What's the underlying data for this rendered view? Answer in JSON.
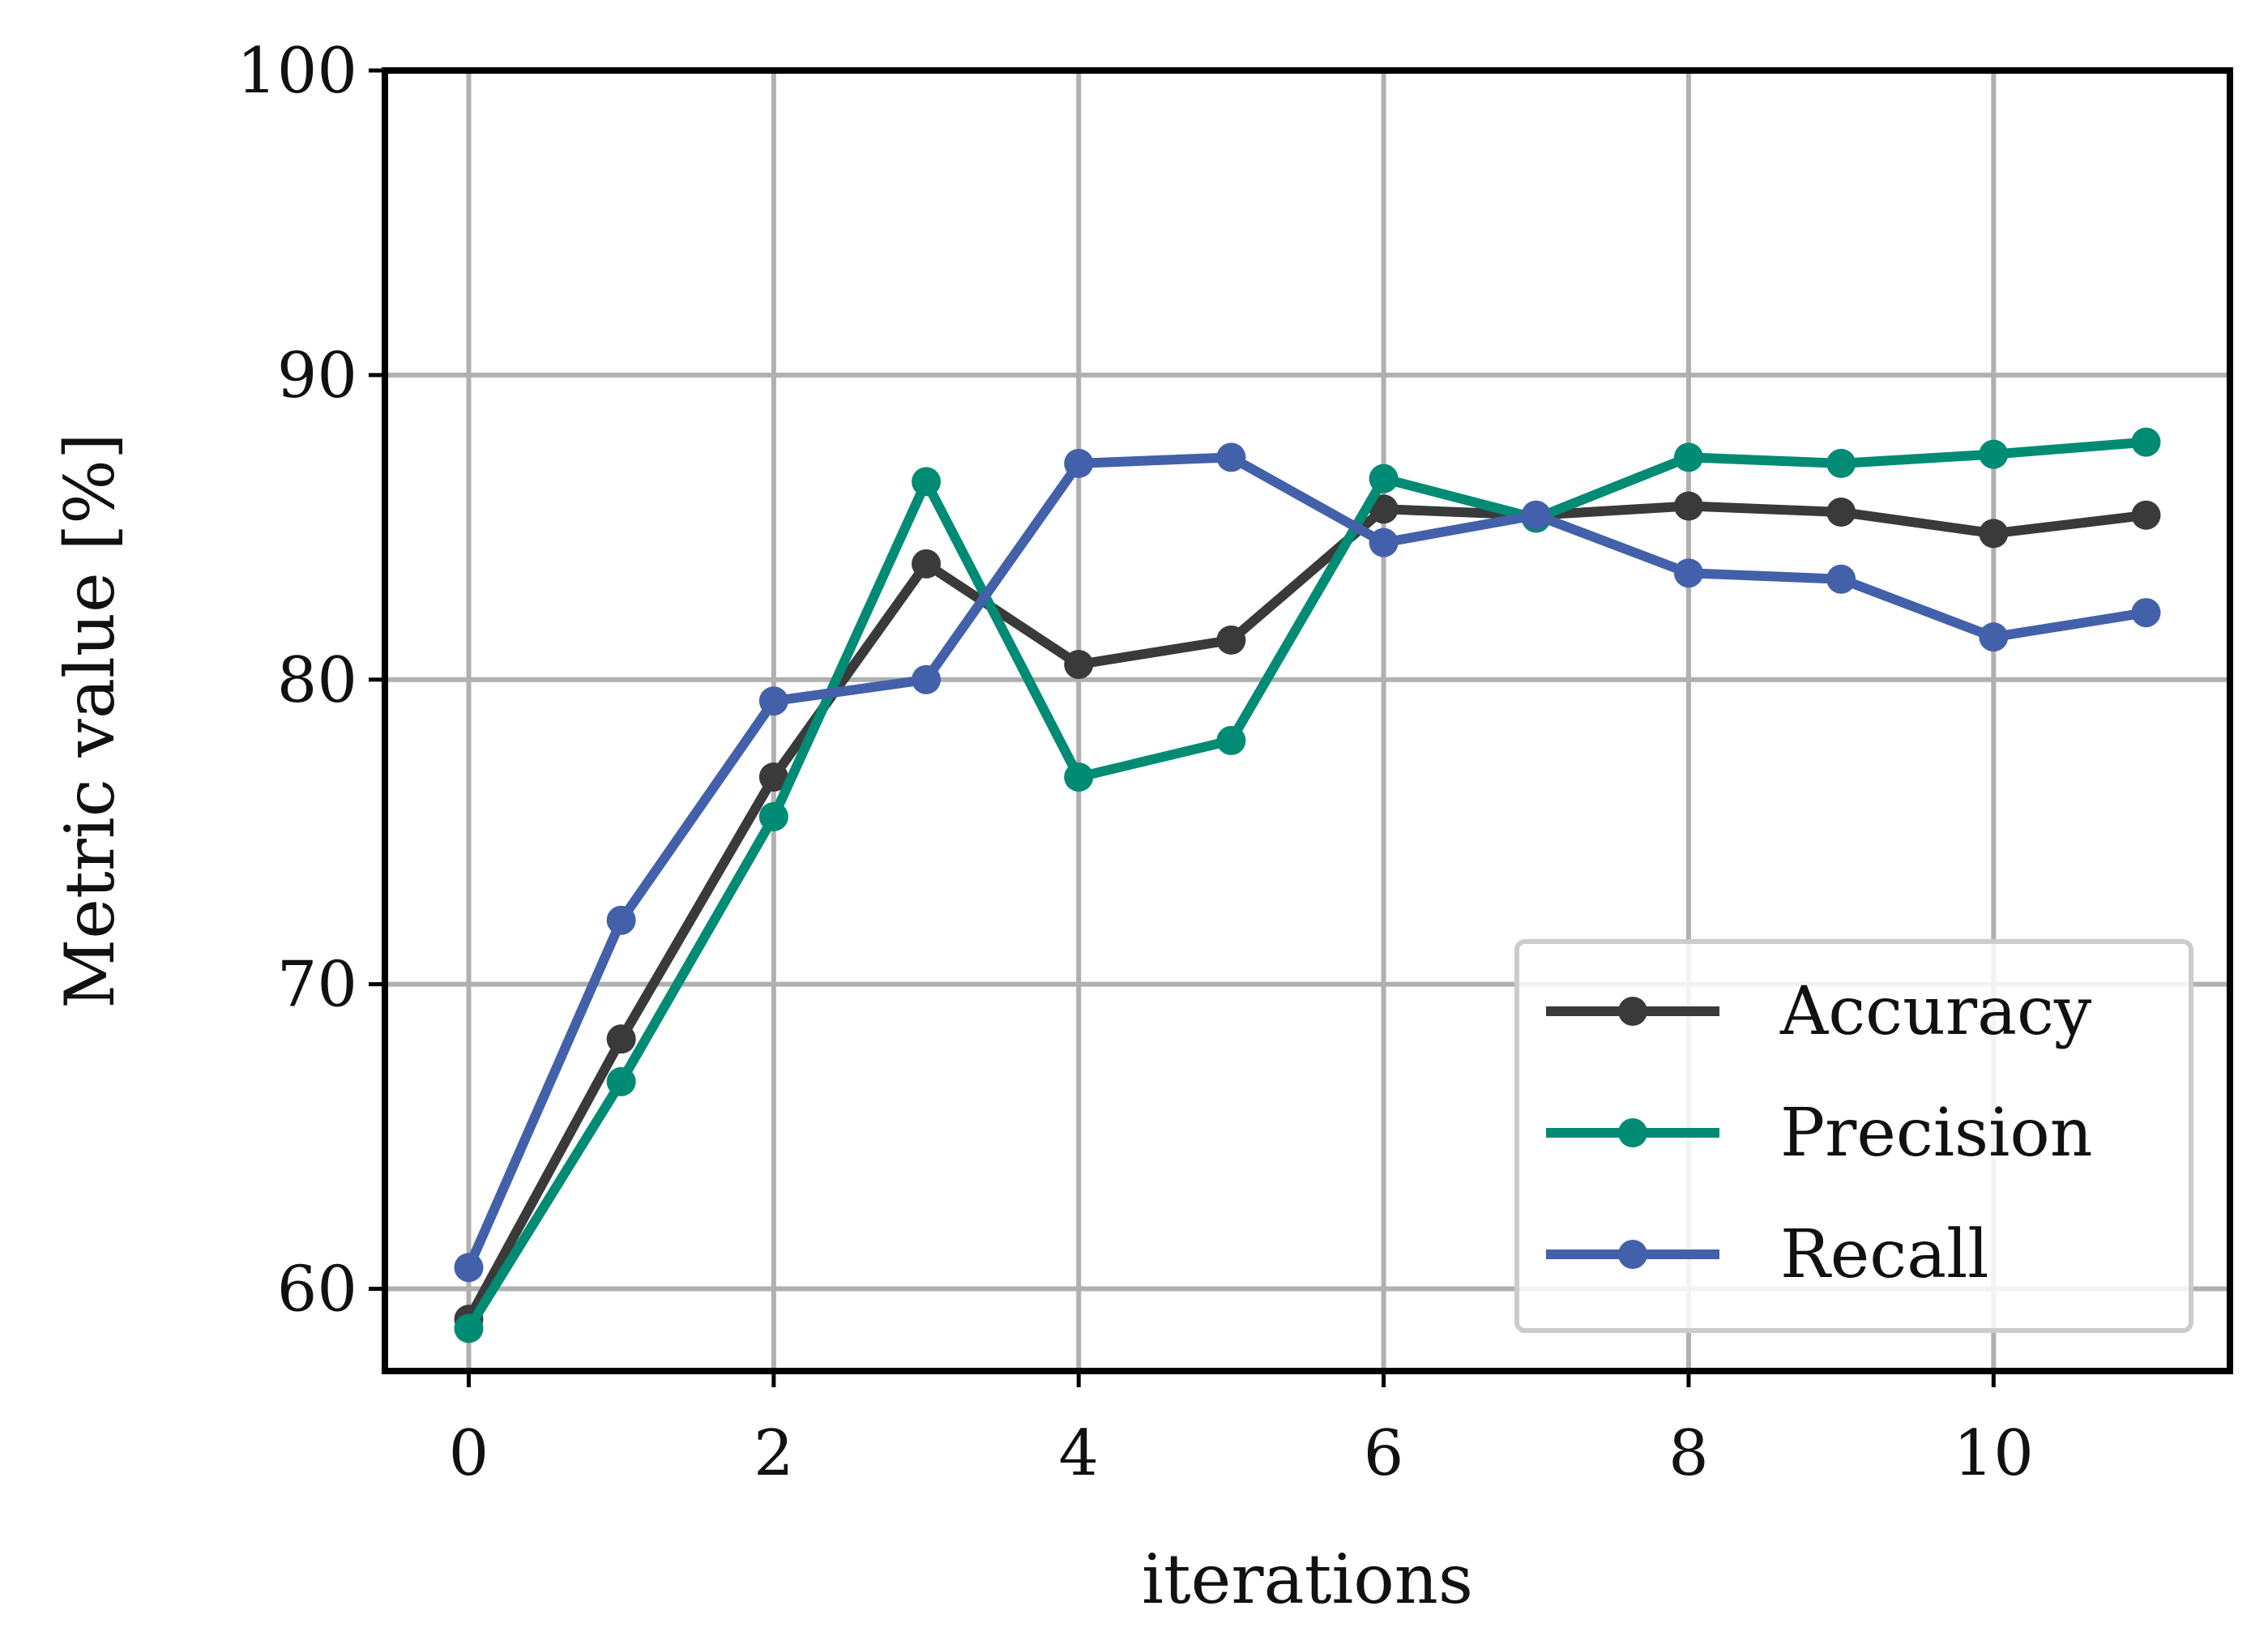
{
  "chart_data": {
    "type": "line",
    "title": "",
    "xlabel": "iterations",
    "ylabel": "Metric value [%]",
    "xlim": [
      -0.55,
      11.55
    ],
    "ylim": [
      57.3,
      100
    ],
    "xticks": [
      0,
      2,
      4,
      6,
      8,
      10
    ],
    "yticks": [
      60,
      70,
      80,
      90,
      100
    ],
    "grid": true,
    "legend_position": "lower-right",
    "x": [
      0,
      1,
      2,
      3,
      4,
      5,
      6,
      7,
      8,
      9,
      10,
      11
    ],
    "series": [
      {
        "name": "Accuracy",
        "color": "#3a3a3a",
        "values": [
          59.0,
          68.2,
          76.8,
          83.8,
          80.5,
          81.3,
          85.6,
          85.4,
          85.7,
          85.5,
          84.8,
          85.4
        ]
      },
      {
        "name": "Precision",
        "color": "#008b74",
        "values": [
          58.7,
          66.8,
          75.5,
          86.5,
          76.8,
          78.0,
          86.6,
          85.3,
          87.3,
          87.1,
          87.4,
          87.8
        ]
      },
      {
        "name": "Recall",
        "color": "#4361aa",
        "values": [
          60.7,
          72.1,
          79.3,
          80.0,
          87.1,
          87.3,
          84.5,
          85.4,
          83.5,
          83.3,
          81.4,
          82.2
        ]
      }
    ]
  }
}
